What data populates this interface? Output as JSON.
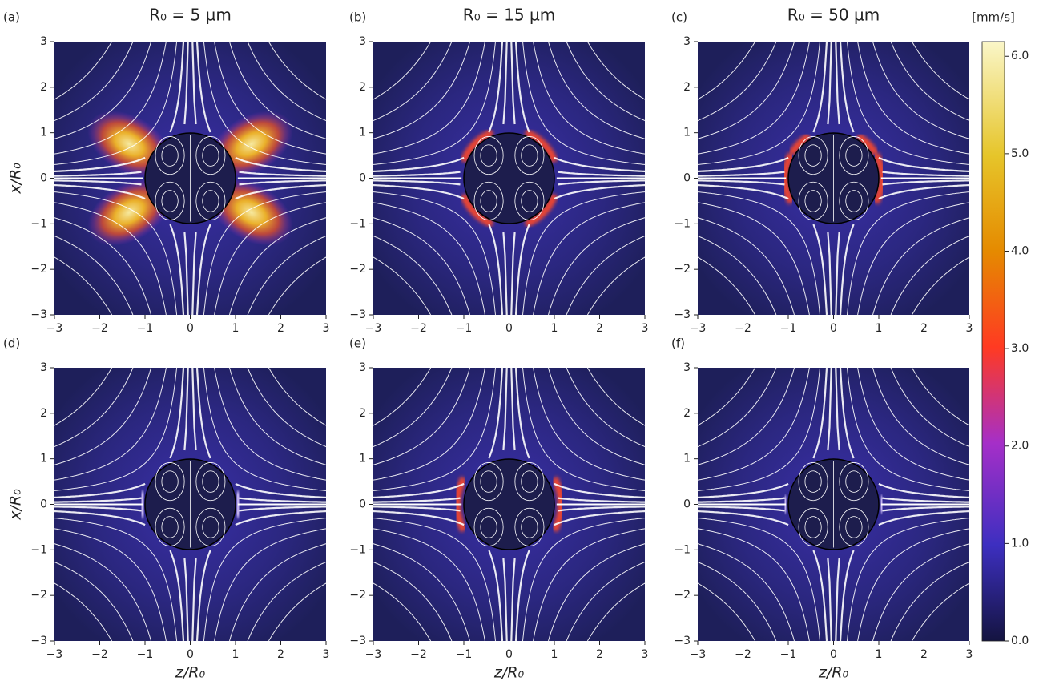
{
  "chart_data": [
    {
      "type": "streamplot",
      "label": "(a)",
      "title": "R₀ = 5 µm",
      "ylabel": "x/R₀",
      "xlim": [
        -3,
        3
      ],
      "ylim": [
        -3,
        3
      ],
      "xticks": [
        {
          "value": -3,
          "label": "−3"
        },
        {
          "value": -2,
          "label": "−2"
        },
        {
          "value": -1,
          "label": "−1"
        },
        0,
        1,
        2,
        3
      ],
      "yticks": [
        {
          "value": -3,
          "label": "−3"
        },
        {
          "value": -2,
          "label": "−2"
        },
        {
          "value": -1,
          "label": "−1"
        },
        0,
        1,
        2,
        3
      ]
    },
    {
      "type": "streamplot",
      "label": "(b)",
      "title": "R₀ = 15 µm",
      "xlim": [
        -3,
        3
      ],
      "ylim": [
        -3,
        3
      ],
      "xticks": [
        {
          "value": -3,
          "label": "−3"
        },
        {
          "value": -2,
          "label": "−2"
        },
        {
          "value": -1,
          "label": "−1"
        },
        0,
        1,
        2,
        3
      ],
      "yticks": [
        {
          "value": -3,
          "label": "−3"
        },
        {
          "value": -2,
          "label": "−2"
        },
        {
          "value": -1,
          "label": "−1"
        },
        0,
        1,
        2,
        3
      ]
    },
    {
      "type": "streamplot",
      "label": "(c)",
      "title": "R₀ = 50 µm",
      "xlim": [
        -3,
        3
      ],
      "ylim": [
        -3,
        3
      ],
      "xticks": [
        {
          "value": -3,
          "label": "−3"
        },
        {
          "value": -2,
          "label": "−2"
        },
        {
          "value": -1,
          "label": "−1"
        },
        0,
        1,
        2,
        3
      ],
      "yticks": [
        {
          "value": -3,
          "label": "−3"
        },
        {
          "value": -2,
          "label": "−2"
        },
        {
          "value": -1,
          "label": "−1"
        },
        0,
        1,
        2,
        3
      ]
    },
    {
      "type": "streamplot",
      "label": "(d)",
      "xlabel": "z/R₀",
      "ylabel": "x/R₀",
      "xlim": [
        -3,
        3
      ],
      "ylim": [
        -3,
        3
      ],
      "xticks": [
        {
          "value": -3,
          "label": "−3"
        },
        {
          "value": -2,
          "label": "−2"
        },
        {
          "value": -1,
          "label": "−1"
        },
        0,
        1,
        2,
        3
      ],
      "yticks": [
        {
          "value": -3,
          "label": "−3"
        },
        {
          "value": -2,
          "label": "−2"
        },
        {
          "value": -1,
          "label": "−1"
        },
        0,
        1,
        2,
        3
      ]
    },
    {
      "type": "streamplot",
      "label": "(e)",
      "xlabel": "z/R₀",
      "xlim": [
        -3,
        3
      ],
      "ylim": [
        -3,
        3
      ],
      "xticks": [
        {
          "value": -3,
          "label": "−3"
        },
        {
          "value": -2,
          "label": "−2"
        },
        {
          "value": -1,
          "label": "−1"
        },
        0,
        1,
        2,
        3
      ],
      "yticks": [
        {
          "value": -3,
          "label": "−3"
        },
        {
          "value": -2,
          "label": "−2"
        },
        {
          "value": -1,
          "label": "−1"
        },
        0,
        1,
        2,
        3
      ]
    },
    {
      "type": "streamplot",
      "label": "(f)",
      "xlabel": "z/R₀",
      "xlim": [
        -3,
        3
      ],
      "ylim": [
        -3,
        3
      ],
      "xticks": [
        {
          "value": -3,
          "label": "−3"
        },
        {
          "value": -2,
          "label": "−2"
        },
        {
          "value": -1,
          "label": "−1"
        },
        0,
        1,
        2,
        3
      ],
      "yticks": [
        {
          "value": -3,
          "label": "−3"
        },
        {
          "value": -2,
          "label": "−2"
        },
        {
          "value": -1,
          "label": "−1"
        },
        0,
        1,
        2,
        3
      ]
    }
  ],
  "colorbar": {
    "label": "[mm/s]",
    "clim": [
      0,
      6.15
    ],
    "ticks": [
      {
        "value": 0,
        "label": "0.0"
      },
      {
        "value": 1,
        "label": "1.0"
      },
      {
        "value": 2,
        "label": "2.0"
      },
      {
        "value": 3,
        "label": "3.0"
      },
      {
        "value": 4,
        "label": "4.0"
      },
      {
        "value": 5,
        "label": "5.0"
      },
      {
        "value": 6,
        "label": "6.0"
      }
    ]
  }
}
